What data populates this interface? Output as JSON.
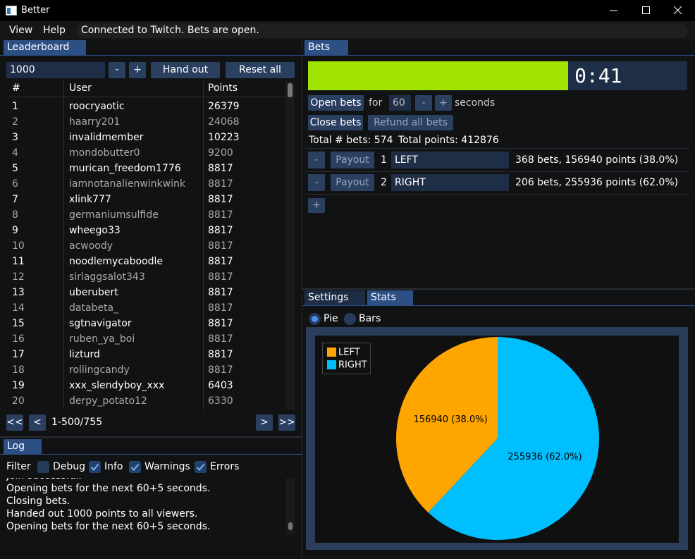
{
  "window": {
    "title": "Better"
  },
  "menu": {
    "items": [
      "View",
      "Help"
    ],
    "status": "Connected to Twitch. Bets are open."
  },
  "leaderboard": {
    "tab": "Leaderboard",
    "amount": "1000",
    "minus": "-",
    "plus": "+",
    "hand_out": "Hand out",
    "reset_all": "Reset all",
    "columns": [
      "#",
      "User",
      "Points"
    ],
    "rows": [
      [
        1,
        "roocryaotic",
        26379
      ],
      [
        2,
        "haarry201",
        24068
      ],
      [
        3,
        "invalidmember",
        10223
      ],
      [
        4,
        "mondobutter0",
        9200
      ],
      [
        5,
        "murican_freedom1776",
        8817
      ],
      [
        6,
        "iamnotanalienwinkwink",
        8817
      ],
      [
        7,
        "xlink777",
        8817
      ],
      [
        8,
        "germaniumsulfide",
        8817
      ],
      [
        9,
        "wheego33",
        8817
      ],
      [
        10,
        "acwoody",
        8817
      ],
      [
        11,
        "noodlemycaboodle",
        8817
      ],
      [
        12,
        "sirlaggsalot343",
        8817
      ],
      [
        13,
        "uberubert",
        8817
      ],
      [
        14,
        "databeta_",
        8817
      ],
      [
        15,
        "sgtnavigator",
        8817
      ],
      [
        16,
        "ruben_ya_boi",
        8817
      ],
      [
        17,
        "lizturd",
        8817
      ],
      [
        18,
        "rollingcandy",
        8817
      ],
      [
        19,
        "xxx_slendyboy_xxx",
        6403
      ],
      [
        20,
        "derpy_potato12",
        6330
      ]
    ],
    "first": "<<",
    "prev": "<",
    "range": "1-500/755",
    "next": ">",
    "last": ">>"
  },
  "log": {
    "tab": "Log",
    "filter": "Filter",
    "checkboxes": [
      {
        "label": "Debug",
        "checked": false
      },
      {
        "label": "Info",
        "checked": true
      },
      {
        "label": "Warnings",
        "checked": true
      },
      {
        "label": "Errors",
        "checked": true
      }
    ],
    "lines": [
      "Join successful.",
      "Opening bets for the next 60+5 seconds.",
      "Closing bets.",
      "Handed out 1000 points to all viewers.",
      "Opening bets for the next 60+5 seconds."
    ]
  },
  "bets": {
    "tab": "Bets",
    "timer": "0:41",
    "progress": 0.686,
    "open_bets": "Open bets",
    "for": "for",
    "seconds_value": "60",
    "minus": "-",
    "plus": "+",
    "seconds": "seconds",
    "close_bets": "Close bets",
    "refund": "Refund all bets",
    "total_bets": "Total # bets: 574",
    "total_points": "Total points: 412876",
    "options": [
      {
        "remove": "-",
        "payout": "Payout",
        "index": "1",
        "name": "LEFT",
        "summary": "368 bets, 156940 points (38.0%)"
      },
      {
        "remove": "-",
        "payout": "Payout",
        "index": "2",
        "name": "RIGHT",
        "summary": "206 bets, 255936 points (62.0%)"
      }
    ],
    "add": "+"
  },
  "stats": {
    "tabs": [
      "Settings",
      "Stats"
    ],
    "radios": [
      {
        "label": "Pie",
        "checked": true
      },
      {
        "label": "Bars",
        "checked": false
      }
    ]
  },
  "chart_data": {
    "type": "pie",
    "categories": [
      "LEFT",
      "RIGHT"
    ],
    "values": [
      156940,
      255936
    ],
    "value_labels": [
      "156940 (38.0%)",
      "255936 (62.0%)"
    ],
    "colors": [
      "#ffa500",
      "#00bfff"
    ],
    "legend": "upper left"
  }
}
